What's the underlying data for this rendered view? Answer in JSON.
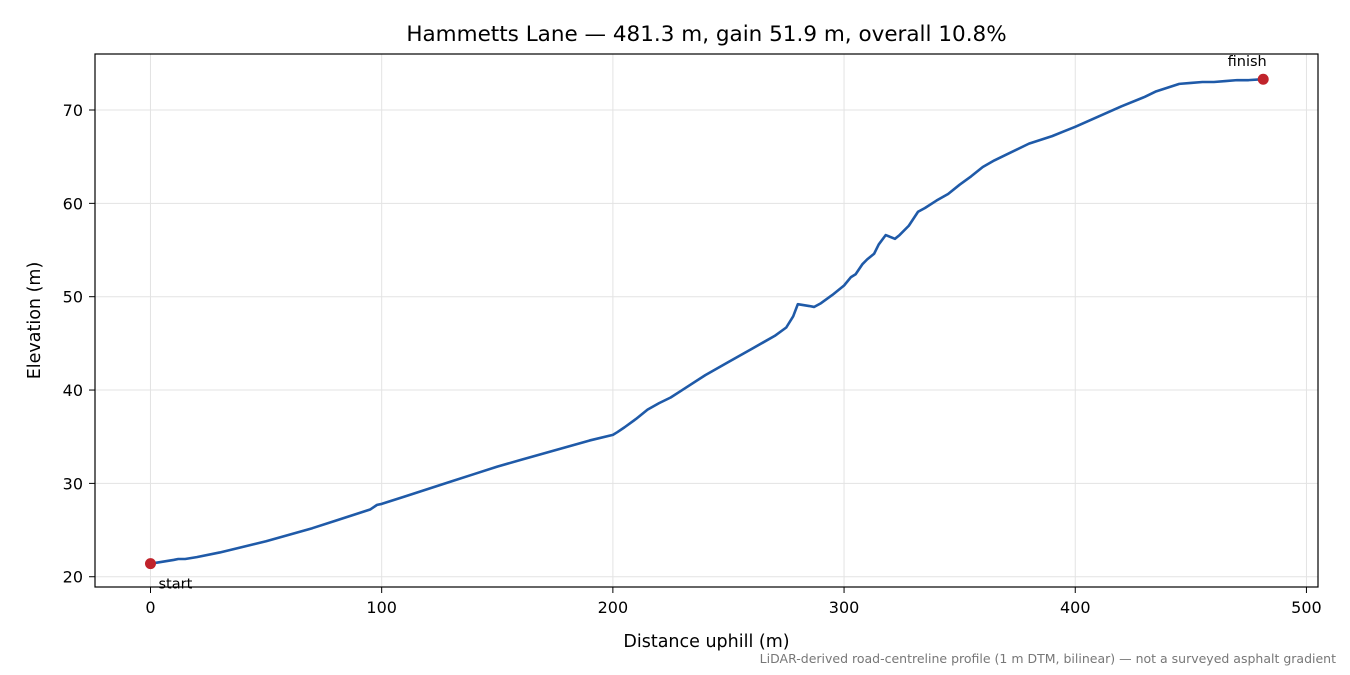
{
  "chart_data": {
    "type": "line",
    "title": "Hammetts Lane — 481.3 m, gain 51.9 m, overall 10.8%",
    "xlabel": "Distance uphill (m)",
    "ylabel": "Elevation (m)",
    "xlim": [
      -24,
      505
    ],
    "ylim": [
      18.9,
      76
    ],
    "xticks": [
      0,
      100,
      200,
      300,
      400,
      500
    ],
    "yticks": [
      20,
      30,
      40,
      50,
      60,
      70
    ],
    "xtick_labels": [
      "0",
      "100",
      "200",
      "300",
      "400",
      "500"
    ],
    "ytick_labels": [
      "20",
      "30",
      "40",
      "50",
      "60",
      "70"
    ],
    "grid": true,
    "series": [
      {
        "color": "#1f5aa8",
        "x": [
          0,
          5,
          10,
          12,
          15,
          20,
          30,
          40,
          50,
          60,
          70,
          80,
          90,
          95,
          98,
          100,
          110,
          120,
          130,
          140,
          150,
          160,
          170,
          180,
          190,
          200,
          202,
          205,
          210,
          215,
          220,
          225,
          230,
          240,
          250,
          260,
          265,
          270,
          275,
          278,
          280,
          285,
          287,
          290,
          295,
          300,
          303,
          305,
          308,
          310,
          313,
          315,
          318,
          320,
          322,
          324,
          328,
          332,
          335,
          340,
          345,
          350,
          355,
          360,
          365,
          370,
          380,
          385,
          390,
          395,
          400,
          410,
          420,
          430,
          435,
          440,
          445,
          450,
          455,
          460,
          465,
          470,
          475,
          481.3
        ],
        "y": [
          21.4,
          21.6,
          21.8,
          21.9,
          21.9,
          22.1,
          22.6,
          23.2,
          23.8,
          24.5,
          25.2,
          26.0,
          26.8,
          27.2,
          27.7,
          27.8,
          28.6,
          29.4,
          30.2,
          31.0,
          31.8,
          32.5,
          33.2,
          33.9,
          34.6,
          35.2,
          35.5,
          36.0,
          36.9,
          37.9,
          38.6,
          39.2,
          40.0,
          41.6,
          43.0,
          44.4,
          45.1,
          45.8,
          46.7,
          47.9,
          49.2,
          49.0,
          48.9,
          49.3,
          50.2,
          51.2,
          52.1,
          52.4,
          53.5,
          54.0,
          54.6,
          55.6,
          56.6,
          56.4,
          56.2,
          56.6,
          57.6,
          59.1,
          59.5,
          60.3,
          61.0,
          62.0,
          62.9,
          63.9,
          64.6,
          65.2,
          66.4,
          66.8,
          67.2,
          67.7,
          68.2,
          69.3,
          70.4,
          71.4,
          72.0,
          72.4,
          72.8,
          72.9,
          73.0,
          73.0,
          73.1,
          73.2,
          73.2,
          73.3
        ]
      }
    ],
    "markers": [
      {
        "x": 0,
        "y": 21.4,
        "label": "start",
        "color": "#c0232b"
      },
      {
        "x": 481.3,
        "y": 73.3,
        "label": "finish",
        "color": "#c0232b"
      }
    ],
    "caption": "LiDAR-derived road-centreline profile (1 m DTM, bilinear) — not a surveyed asphalt gradient"
  }
}
